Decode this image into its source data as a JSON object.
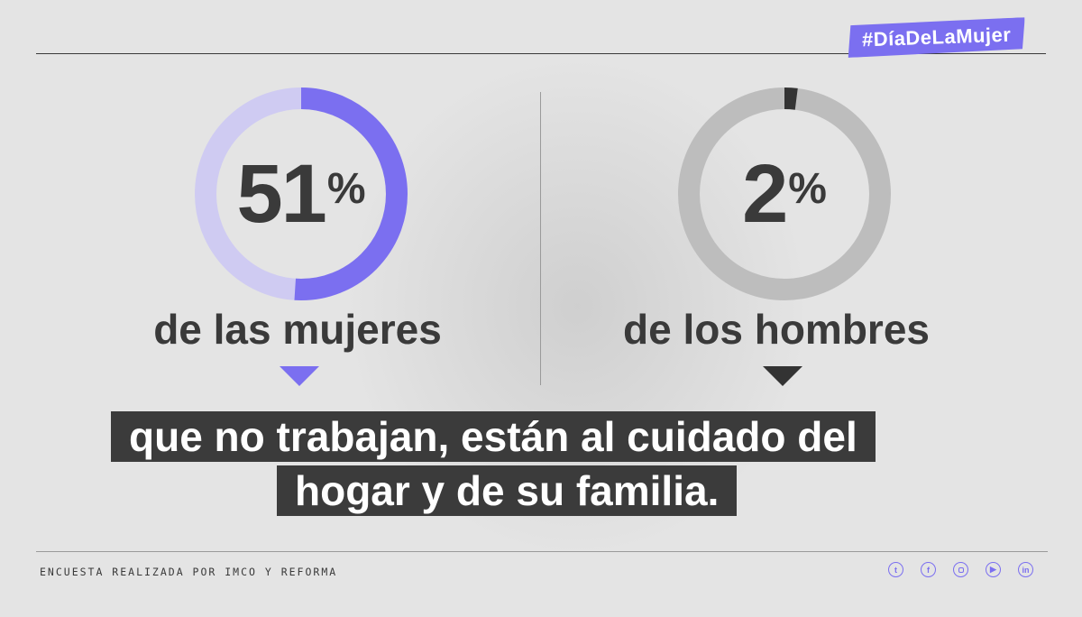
{
  "hashtag": "#DíaDeLaMujer",
  "chart_data": {
    "type": "pie",
    "unit": "%",
    "series": [
      {
        "name": "de las mujeres",
        "value": 51,
        "accent": "#7b6ff0",
        "track": "#cfcbf2",
        "pointer": "#7b6ff0"
      },
      {
        "name": "de los hombres",
        "value": 2,
        "accent": "#333333",
        "track": "#bdbdbd",
        "pointer": "#333333"
      }
    ]
  },
  "left": {
    "value_text": "51",
    "percent_sign": "%",
    "label": "de las mujeres"
  },
  "right": {
    "value_text": "2",
    "percent_sign": "%",
    "label": "de los hombres"
  },
  "caption": {
    "line1": "que no trabajan, están al cuidado del",
    "line2": "hogar  y de su familia."
  },
  "footer": {
    "source": "ENCUESTA REALIZADA POR IMCO Y REFORMA",
    "social": [
      "twitter-icon",
      "facebook-icon",
      "instagram-icon",
      "youtube-icon",
      "linkedin-icon"
    ]
  }
}
